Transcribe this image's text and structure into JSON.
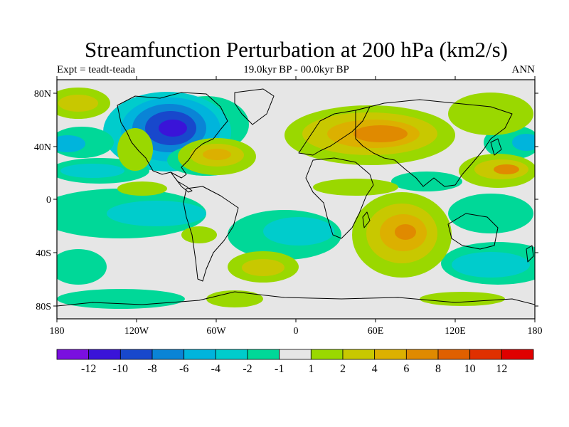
{
  "title": "Streamfunction Perturbation at 200 hPa (km2/s)",
  "experiment_label": "Expt = teadt-teada",
  "period_label": "19.0kyr BP - 00.0kyr BP",
  "season_label": "ANN",
  "lon_labels": [
    "180",
    "120W",
    "60W",
    "0",
    "60E",
    "120E",
    "180"
  ],
  "lat_labels": [
    "80N",
    "40N",
    "0",
    "40S",
    "80S"
  ],
  "colorbar": {
    "labels": [
      "-12",
      "-10",
      "-8",
      "-6",
      "-4",
      "-2",
      "-1",
      "1",
      "2",
      "4",
      "6",
      "8",
      "10",
      "12"
    ],
    "colors": [
      "#7a0fe0",
      "#3a14d8",
      "#1848cc",
      "#0a84d6",
      "#00b4dc",
      "#00cccc",
      "#00d898",
      "#e6e6e6",
      "#9ad800",
      "#c8c800",
      "#dcb000",
      "#e08a00",
      "#e06000",
      "#e03000",
      "#e00000"
    ]
  },
  "colors": {
    "land_coast": "#000000",
    "background": "#e6e6e6"
  }
}
